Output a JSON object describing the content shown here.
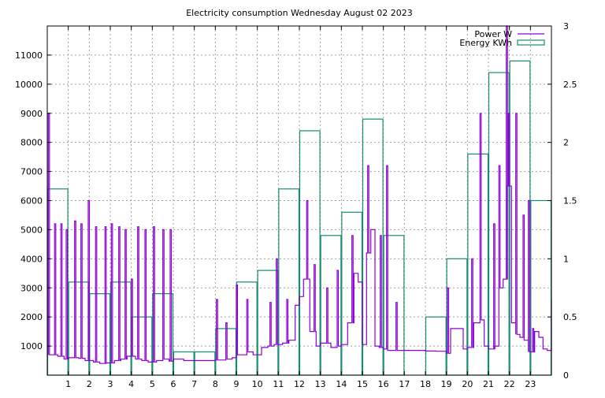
{
  "chart_data": {
    "type": "bar",
    "title": "Electricity consumption Wednesday August 02 2023",
    "x_ticks": [
      1,
      2,
      3,
      4,
      5,
      6,
      7,
      8,
      9,
      10,
      11,
      12,
      13,
      14,
      15,
      16,
      17,
      18,
      19,
      20,
      21,
      22,
      23
    ],
    "xlim": [
      0,
      24
    ],
    "y_left": {
      "ylim": [
        0,
        12000
      ],
      "ticks": [
        1000,
        2000,
        3000,
        4000,
        5000,
        6000,
        7000,
        8000,
        9000,
        10000,
        11000
      ]
    },
    "y_right": {
      "ylim": [
        0,
        3
      ],
      "ticks": [
        "0",
        "0.5",
        "1",
        "1.5",
        "2",
        "2.5",
        "3"
      ]
    },
    "grid": true,
    "legend": {
      "placement": "top-right",
      "entries": [
        "Power W",
        "Energy KWh"
      ]
    },
    "colors": {
      "power": "#8b00d4",
      "energy": "#168b72"
    },
    "series": [
      {
        "name": "Energy KWh",
        "axis": "right",
        "type": "bar",
        "hours": [
          0,
          1,
          2,
          3,
          4,
          5,
          6,
          7,
          8,
          9,
          10,
          11,
          12,
          13,
          14,
          15,
          16,
          17,
          18,
          19,
          20,
          21,
          22,
          23
        ],
        "values": [
          1.6,
          0.8,
          0.7,
          0.8,
          0.5,
          0.7,
          0.2,
          0.2,
          0.4,
          0.8,
          0.9,
          1.6,
          2.1,
          1.2,
          1.4,
          2.2,
          1.2,
          0.0,
          0.5,
          1.0,
          1.9,
          2.6,
          2.7,
          1.5
        ]
      },
      {
        "name": "Power W",
        "axis": "left",
        "type": "line",
        "baseline_points": [
          [
            0.0,
            2800
          ],
          [
            0.05,
            700
          ],
          [
            0.5,
            650
          ],
          [
            0.8,
            550
          ],
          [
            1.0,
            600
          ],
          [
            1.5,
            580
          ],
          [
            1.8,
            500
          ],
          [
            2.2,
            450
          ],
          [
            2.5,
            400
          ],
          [
            2.8,
            420
          ],
          [
            3.2,
            500
          ],
          [
            3.5,
            550
          ],
          [
            3.8,
            650
          ],
          [
            4.2,
            550
          ],
          [
            4.5,
            500
          ],
          [
            4.8,
            450
          ],
          [
            5.2,
            500
          ],
          [
            5.5,
            550
          ],
          [
            5.8,
            480
          ],
          [
            6.0,
            550
          ],
          [
            6.5,
            500
          ],
          [
            7.0,
            500
          ],
          [
            7.5,
            500
          ],
          [
            8.0,
            520
          ],
          [
            8.5,
            550
          ],
          [
            8.8,
            600
          ],
          [
            9.0,
            700
          ],
          [
            9.5,
            800
          ],
          [
            9.8,
            700
          ],
          [
            10.2,
            950
          ],
          [
            10.5,
            1000
          ],
          [
            10.8,
            1050
          ],
          [
            11.2,
            1100
          ],
          [
            11.5,
            1200
          ],
          [
            11.8,
            2400
          ],
          [
            12.0,
            2700
          ],
          [
            12.2,
            3300
          ],
          [
            12.5,
            1500
          ],
          [
            12.8,
            1000
          ],
          [
            13.0,
            1100
          ],
          [
            13.5,
            950
          ],
          [
            13.8,
            1000
          ],
          [
            14.0,
            1050
          ],
          [
            14.3,
            1800
          ],
          [
            14.6,
            3500
          ],
          [
            14.8,
            3200
          ],
          [
            15.0,
            1050
          ],
          [
            15.2,
            4200
          ],
          [
            15.4,
            5000
          ],
          [
            15.6,
            1000
          ],
          [
            15.8,
            950
          ],
          [
            16.0,
            900
          ],
          [
            16.2,
            850
          ],
          [
            16.5,
            850
          ],
          [
            17.0,
            850
          ],
          [
            17.5,
            850
          ],
          [
            18.0,
            830
          ],
          [
            18.5,
            820
          ],
          [
            19.0,
            750
          ],
          [
            19.2,
            1600
          ],
          [
            19.5,
            1600
          ],
          [
            19.8,
            900
          ],
          [
            20.0,
            950
          ],
          [
            20.3,
            1800
          ],
          [
            20.6,
            1900
          ],
          [
            20.8,
            1000
          ],
          [
            21.0,
            900
          ],
          [
            21.3,
            1000
          ],
          [
            21.5,
            3000
          ],
          [
            21.7,
            3300
          ],
          [
            21.9,
            6500
          ],
          [
            22.1,
            1800
          ],
          [
            22.3,
            1400
          ],
          [
            22.5,
            1300
          ],
          [
            22.7,
            1200
          ],
          [
            22.9,
            800
          ],
          [
            23.2,
            1500
          ],
          [
            23.4,
            1300
          ],
          [
            23.6,
            900
          ],
          [
            23.8,
            850
          ],
          [
            24.0,
            2600
          ]
        ],
        "spikes": [
          [
            0.05,
            9000
          ],
          [
            0.35,
            5200
          ],
          [
            0.65,
            5200
          ],
          [
            0.9,
            5000
          ],
          [
            1.3,
            5300
          ],
          [
            1.6,
            5200
          ],
          [
            1.95,
            6000
          ],
          [
            2.3,
            5100
          ],
          [
            2.75,
            5100
          ],
          [
            3.05,
            5200
          ],
          [
            3.4,
            5100
          ],
          [
            3.7,
            5000
          ],
          [
            4.0,
            3300
          ],
          [
            4.3,
            5100
          ],
          [
            4.65,
            5000
          ],
          [
            5.05,
            5100
          ],
          [
            5.5,
            5000
          ],
          [
            5.85,
            5000
          ],
          [
            8.05,
            2600
          ],
          [
            8.5,
            1800
          ],
          [
            9.0,
            3100
          ],
          [
            9.5,
            2600
          ],
          [
            10.6,
            2500
          ],
          [
            10.9,
            4000
          ],
          [
            11.4,
            2600
          ],
          [
            12.35,
            6000
          ],
          [
            12.7,
            3800
          ],
          [
            13.3,
            3000
          ],
          [
            13.8,
            3600
          ],
          [
            14.5,
            4800
          ],
          [
            15.25,
            7200
          ],
          [
            15.85,
            4800
          ],
          [
            16.15,
            7200
          ],
          [
            16.6,
            2500
          ],
          [
            19.05,
            3000
          ],
          [
            20.2,
            4000
          ],
          [
            20.6,
            9000
          ],
          [
            21.25,
            5200
          ],
          [
            21.5,
            7200
          ],
          [
            21.85,
            12000
          ],
          [
            21.95,
            9000
          ],
          [
            22.05,
            6500
          ],
          [
            22.3,
            9000
          ],
          [
            22.65,
            5500
          ],
          [
            22.9,
            6000
          ],
          [
            23.1,
            1600
          ]
        ]
      }
    ]
  }
}
